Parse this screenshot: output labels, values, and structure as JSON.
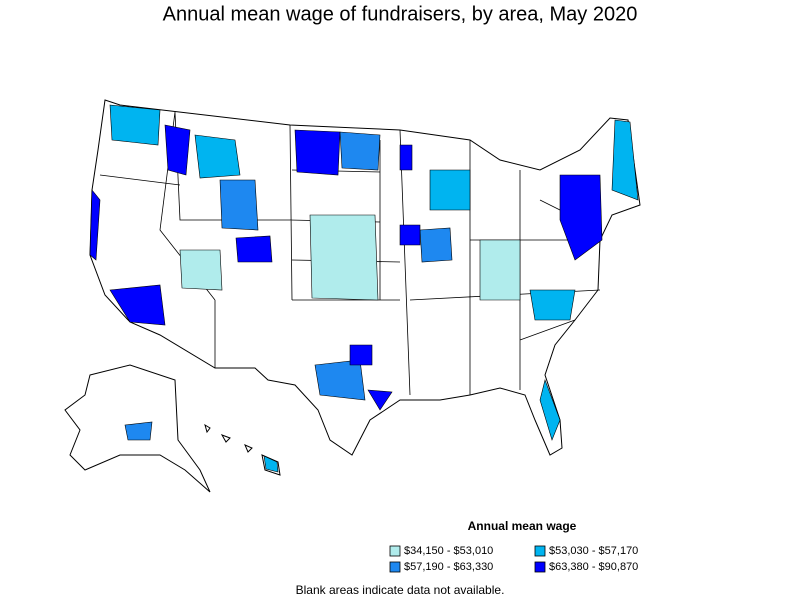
{
  "title": "Annual mean wage of fundraisers, by area, May 2020",
  "legend": {
    "title": "Annual mean wage",
    "items": [
      {
        "label": "$34,150 - $53,010",
        "color": "#b0ecec"
      },
      {
        "label": "$53,030 - $57,170",
        "color": "#00b4f0"
      },
      {
        "label": "$57,190 - $63,330",
        "color": "#1e88f0"
      },
      {
        "label": "$63,380 - $90,870",
        "color": "#0000ff"
      }
    ]
  },
  "note": "Blank areas indicate data not available."
}
